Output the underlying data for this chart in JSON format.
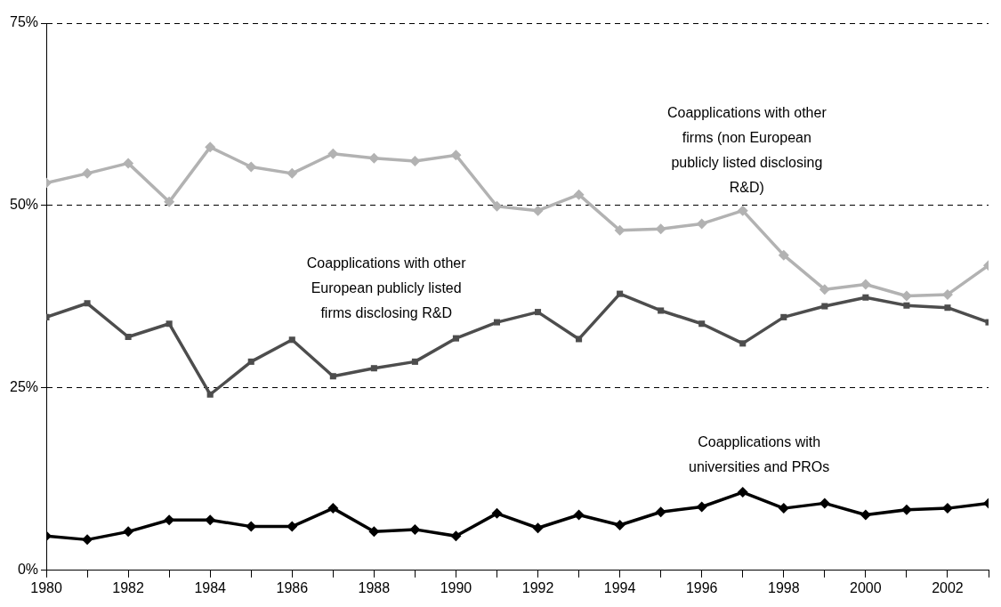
{
  "chart_data": {
    "type": "line",
    "x": [
      1980,
      1981,
      1982,
      1983,
      1984,
      1985,
      1986,
      1987,
      1988,
      1989,
      1990,
      1991,
      1992,
      1993,
      1994,
      1995,
      1996,
      1997,
      1998,
      1999,
      2000,
      2001,
      2002,
      2003
    ],
    "xlim": [
      1980,
      2003
    ],
    "xticks": [
      1980,
      {
        "value": 1981,
        "label": null
      },
      1982,
      {
        "value": 1983,
        "label": null
      },
      1984,
      {
        "value": 1985,
        "label": null
      },
      1986,
      {
        "value": 1987,
        "label": null
      },
      1988,
      {
        "value": 1989,
        "label": null
      },
      1990,
      {
        "value": 1991,
        "label": null
      },
      1992,
      {
        "value": 1993,
        "label": null
      },
      1994,
      {
        "value": 1995,
        "label": null
      },
      1996,
      {
        "value": 1997,
        "label": null
      },
      1998,
      {
        "value": 1999,
        "label": null
      },
      2000,
      {
        "value": 2001,
        "label": null
      },
      2002,
      {
        "value": 2003,
        "label": null
      }
    ],
    "ylim": [
      0,
      75
    ],
    "yticks": [
      {
        "value": 0,
        "label": "0%"
      },
      {
        "value": 25,
        "label": "25%"
      },
      {
        "value": 50,
        "label": "50%"
      },
      {
        "value": 75,
        "label": "75%"
      }
    ],
    "grid": "y",
    "legend": false,
    "line_style": "solid",
    "series": [
      {
        "name": "Coapplications with other firms (non European publicly listed disclosing R&D)",
        "color": "#b2b2b2",
        "marker": "diamond",
        "values": [
          53.1,
          54.4,
          55.8,
          50.5,
          58.0,
          55.3,
          54.4,
          57.1,
          56.5,
          56.1,
          56.9,
          49.9,
          49.3,
          51.5,
          46.6,
          46.8,
          47.5,
          49.3,
          43.2,
          38.5,
          39.2,
          37.6,
          37.8,
          41.8
        ]
      },
      {
        "name": "Coapplications with other European publicly listed firms disclosing R&D",
        "color": "#4d4d4d",
        "marker": "square",
        "values": [
          34.7,
          36.6,
          32.0,
          33.8,
          24.1,
          28.6,
          31.6,
          26.6,
          27.7,
          28.6,
          31.8,
          34.0,
          35.4,
          31.7,
          37.9,
          35.6,
          33.8,
          31.1,
          34.7,
          36.2,
          37.4,
          36.3,
          36.0,
          34.0
        ]
      },
      {
        "name": "Coapplications with universities and PROs",
        "color": "#000000",
        "marker": "diamond",
        "values": [
          4.7,
          4.2,
          5.3,
          6.9,
          6.9,
          6.0,
          6.0,
          8.5,
          5.3,
          5.6,
          4.7,
          7.8,
          5.8,
          7.6,
          6.2,
          8.0,
          8.7,
          10.7,
          8.5,
          9.2,
          7.6,
          8.3,
          8.5,
          9.2
        ]
      }
    ]
  }
}
